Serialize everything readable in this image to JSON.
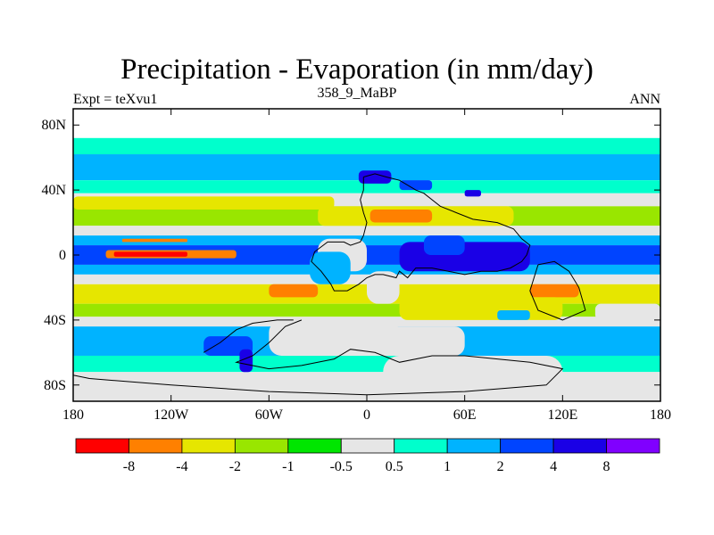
{
  "chart_data": {
    "type": "heatmap",
    "title": "Precipitation - Evaporation (in mm/day)",
    "subtitle_center": "358_9_MaBP",
    "subtitle_left": "Expt = teXvu1",
    "subtitle_right": "ANN",
    "x_ticks": [
      "180",
      "120W",
      "60W",
      "0",
      "60E",
      "120E",
      "180"
    ],
    "y_ticks": [
      "80N",
      "40N",
      "0",
      "40S",
      "80S"
    ],
    "xlim": [
      -180,
      180
    ],
    "ylim": [
      -90,
      90
    ],
    "colorbar": {
      "colors": [
        "#ff0000",
        "#ff8000",
        "#e6e600",
        "#99e600",
        "#00e600",
        "#e6e6e6",
        "#00ffcc",
        "#00b3ff",
        "#0044ff",
        "#1a00e6",
        "#8000ff"
      ],
      "labels": [
        "-8",
        "-4",
        "-2",
        "-1",
        "-0.5",
        "0.5",
        "1",
        "2",
        "4",
        "8"
      ]
    },
    "zonal_bands": [
      {
        "lat": [
          72,
          90
        ],
        "color": "#ffffff"
      },
      {
        "lat": [
          62,
          72
        ],
        "color": "#00ffcc"
      },
      {
        "lat": [
          46,
          62
        ],
        "color": "#00b3ff"
      },
      {
        "lat": [
          38,
          46
        ],
        "color": "#00ffcc"
      },
      {
        "lat": [
          30,
          38
        ],
        "color": "#e6e6e6"
      },
      {
        "lat": [
          18,
          30
        ],
        "color": "#99e600"
      },
      {
        "lat": [
          12,
          18
        ],
        "color": "#e6e6e6"
      },
      {
        "lat": [
          6,
          12
        ],
        "color": "#00b3ff"
      },
      {
        "lat": [
          -6,
          6
        ],
        "color": "#0044ff"
      },
      {
        "lat": [
          -12,
          -6
        ],
        "color": "#00b3ff"
      },
      {
        "lat": [
          -18,
          -12
        ],
        "color": "#e6e6e6"
      },
      {
        "lat": [
          -30,
          -18
        ],
        "color": "#e6e600"
      },
      {
        "lat": [
          -38,
          -30
        ],
        "color": "#99e600"
      },
      {
        "lat": [
          -44,
          -38
        ],
        "color": "#e6e6e6"
      },
      {
        "lat": [
          -62,
          -44
        ],
        "color": "#00b3ff"
      },
      {
        "lat": [
          -72,
          -62
        ],
        "color": "#00ffcc"
      },
      {
        "lat": [
          -90,
          -72
        ],
        "color": "#e6e6e6"
      }
    ],
    "patches": [
      {
        "lon": [
          -160,
          -80
        ],
        "lat": [
          -2,
          3
        ],
        "color": "#ff8000"
      },
      {
        "lon": [
          -155,
          -110
        ],
        "lat": [
          -1,
          2
        ],
        "color": "#ff0000"
      },
      {
        "lon": [
          -150,
          -110
        ],
        "lat": [
          8,
          10
        ],
        "color": "#ff8000"
      },
      {
        "lon": [
          -180,
          -20
        ],
        "lat": [
          28,
          36
        ],
        "color": "#e6e600"
      },
      {
        "lon": [
          -130,
          -80
        ],
        "lat": [
          -30,
          -20
        ],
        "color": "#e6e600"
      },
      {
        "lon": [
          -60,
          -30
        ],
        "lat": [
          -26,
          -18
        ],
        "color": "#ff8000"
      },
      {
        "lon": [
          100,
          130
        ],
        "lat": [
          -26,
          -18
        ],
        "color": "#ff8000"
      },
      {
        "lon": [
          -30,
          90
        ],
        "lat": [
          18,
          30
        ],
        "color": "#e6e600"
      },
      {
        "lon": [
          2,
          40
        ],
        "lat": [
          20,
          28
        ],
        "color": "#ff8000"
      },
      {
        "lon": [
          -30,
          0
        ],
        "lat": [
          -10,
          10
        ],
        "color": "#e6e6e6"
      },
      {
        "lon": [
          0,
          20
        ],
        "lat": [
          -30,
          -10
        ],
        "color": "#e6e6e6"
      },
      {
        "lon": [
          20,
          120
        ],
        "lat": [
          -40,
          -26
        ],
        "color": "#e6e600"
      },
      {
        "lon": [
          -60,
          20
        ],
        "lat": [
          -62,
          -40
        ],
        "color": "#e6e6e6"
      },
      {
        "lon": [
          10,
          120
        ],
        "lat": [
          -90,
          -62
        ],
        "color": "#e6e6e6"
      },
      {
        "lon": [
          -10,
          60
        ],
        "lat": [
          -62,
          -44
        ],
        "color": "#e6e6e6"
      },
      {
        "lon": [
          -35,
          -10
        ],
        "lat": [
          -18,
          2
        ],
        "color": "#00b3ff"
      },
      {
        "lon": [
          20,
          100
        ],
        "lat": [
          -10,
          8
        ],
        "color": "#1a00e6"
      },
      {
        "lon": [
          35,
          60
        ],
        "lat": [
          0,
          12
        ],
        "color": "#0044ff"
      },
      {
        "lon": [
          -5,
          15
        ],
        "lat": [
          44,
          52
        ],
        "color": "#1a00e6"
      },
      {
        "lon": [
          20,
          40
        ],
        "lat": [
          40,
          46
        ],
        "color": "#0044ff"
      },
      {
        "lon": [
          60,
          70
        ],
        "lat": [
          36,
          40
        ],
        "color": "#1a00e6"
      },
      {
        "lon": [
          80,
          100
        ],
        "lat": [
          -40,
          -34
        ],
        "color": "#00b3ff"
      },
      {
        "lon": [
          140,
          180
        ],
        "lat": [
          -40,
          -30
        ],
        "color": "#e6e6e6"
      },
      {
        "lon": [
          -100,
          -70
        ],
        "lat": [
          -62,
          -50
        ],
        "color": "#0044ff"
      },
      {
        "lon": [
          -78,
          -70
        ],
        "lat": [
          -72,
          -58
        ],
        "color": "#1a00e6"
      }
    ],
    "coastline": [
      [
        [
          -2,
          48
        ],
        [
          5,
          50
        ],
        [
          12,
          48
        ],
        [
          20,
          46
        ],
        [
          30,
          40
        ],
        [
          35,
          38
        ],
        [
          45,
          30
        ],
        [
          55,
          26
        ],
        [
          65,
          22
        ],
        [
          80,
          20
        ],
        [
          90,
          16
        ],
        [
          95,
          10
        ],
        [
          100,
          6
        ],
        [
          98,
          0
        ],
        [
          95,
          -4
        ],
        [
          88,
          -8
        ],
        [
          80,
          -10
        ],
        [
          70,
          -10
        ],
        [
          60,
          -12
        ],
        [
          50,
          -10
        ],
        [
          40,
          -8
        ],
        [
          30,
          -8
        ],
        [
          25,
          -14
        ],
        [
          20,
          -10
        ],
        [
          18,
          -14
        ],
        [
          10,
          -12
        ],
        [
          5,
          -12
        ],
        [
          0,
          -14
        ],
        [
          -5,
          -18
        ],
        [
          -12,
          -22
        ],
        [
          -20,
          -22
        ],
        [
          -22,
          -18
        ],
        [
          -28,
          -10
        ],
        [
          -34,
          -4
        ],
        [
          -32,
          2
        ],
        [
          -24,
          8
        ],
        [
          -14,
          8
        ],
        [
          -10,
          6
        ],
        [
          -4,
          8
        ],
        [
          -2,
          12
        ],
        [
          0,
          20
        ],
        [
          -2,
          26
        ],
        [
          -4,
          34
        ],
        [
          -2,
          40
        ],
        [
          -2,
          48
        ]
      ],
      [
        [
          105,
          -6
        ],
        [
          115,
          -4
        ],
        [
          124,
          -10
        ],
        [
          130,
          -20
        ],
        [
          134,
          -34
        ],
        [
          120,
          -40
        ],
        [
          105,
          -34
        ],
        [
          100,
          -22
        ],
        [
          105,
          -6
        ]
      ],
      [
        [
          -40,
          -40
        ],
        [
          -50,
          -44
        ],
        [
          -60,
          -54
        ],
        [
          -70,
          -62
        ],
        [
          -80,
          -66
        ],
        [
          -60,
          -70
        ],
        [
          -40,
          -68
        ],
        [
          -20,
          -64
        ],
        [
          -10,
          -58
        ],
        [
          5,
          -60
        ],
        [
          20,
          -66
        ],
        [
          40,
          -62
        ],
        [
          60,
          -62
        ],
        [
          80,
          -64
        ],
        [
          100,
          -66
        ],
        [
          120,
          -70
        ],
        [
          110,
          -80
        ],
        [
          60,
          -84
        ],
        [
          0,
          -86
        ],
        [
          -60,
          -84
        ],
        [
          -120,
          -80
        ],
        [
          -170,
          -76
        ],
        [
          -180,
          -74
        ]
      ],
      [
        [
          -100,
          -60
        ],
        [
          -90,
          -54
        ],
        [
          -80,
          -46
        ],
        [
          -70,
          -42
        ],
        [
          -55,
          -40
        ],
        [
          -45,
          -40
        ]
      ]
    ]
  }
}
